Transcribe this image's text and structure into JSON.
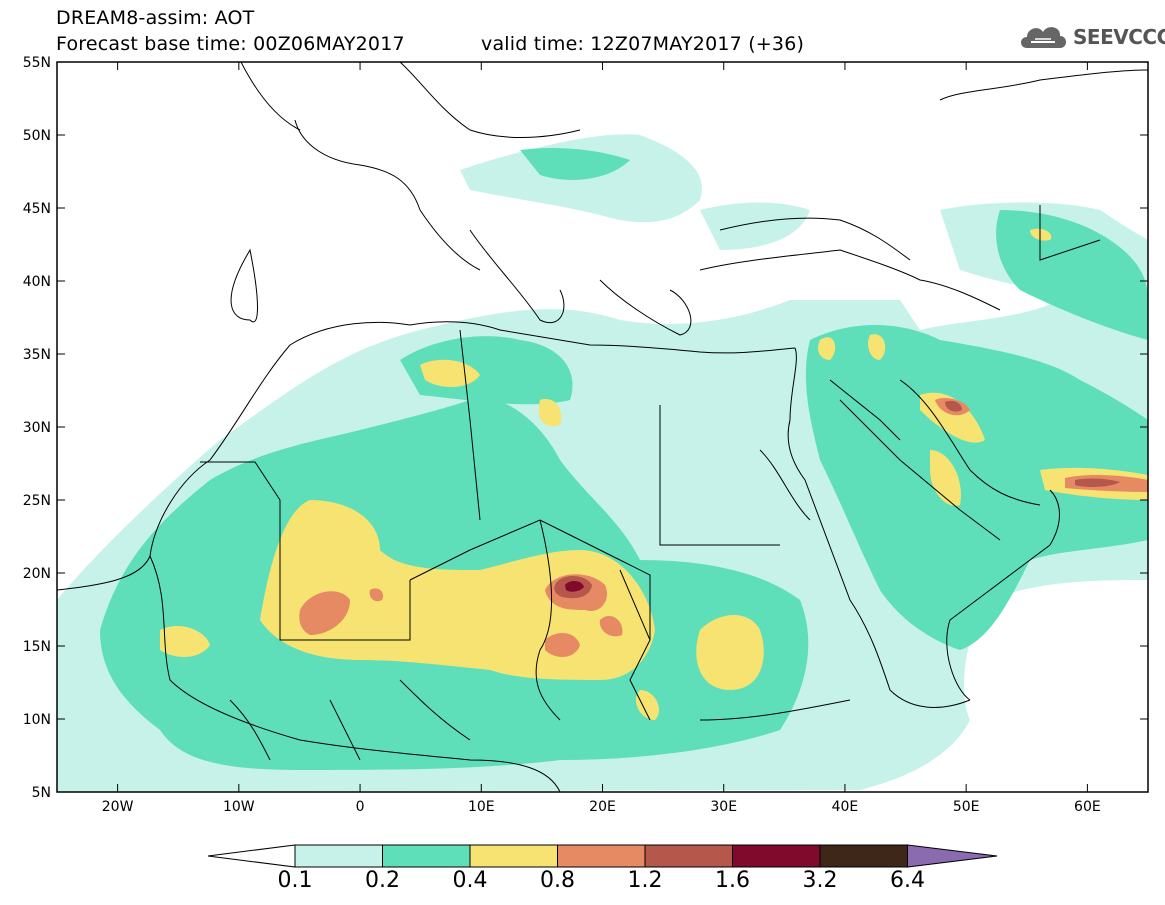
{
  "header": {
    "title": "DREAM8-assim: AOT",
    "base_time": "Forecast base time: 00Z06MAY2017",
    "valid_time": "valid time: 12Z07MAY2017 (+36)",
    "logo_text": "SEEVCCC"
  },
  "map": {
    "lat_labels": [
      "55N",
      "50N",
      "45N",
      "40N",
      "35N",
      "30N",
      "25N",
      "20N",
      "15N",
      "10N",
      "5N"
    ],
    "lon_labels": [
      "20W",
      "10W",
      "0",
      "10E",
      "20E",
      "30E",
      "40E",
      "50E",
      "60E"
    ],
    "lat_range": [
      5,
      55
    ],
    "lon_range": [
      -25,
      65
    ]
  },
  "legend": {
    "levels": [
      "0.1",
      "0.2",
      "0.4",
      "0.8",
      "1.2",
      "1.6",
      "3.2",
      "6.4"
    ],
    "colors": [
      "#c6f2ea",
      "#5fdfb9",
      "#f6e372",
      "#e68a63",
      "#b5574a",
      "#7f0a2c",
      "#3e2618",
      "#8a6bb0"
    ]
  }
}
